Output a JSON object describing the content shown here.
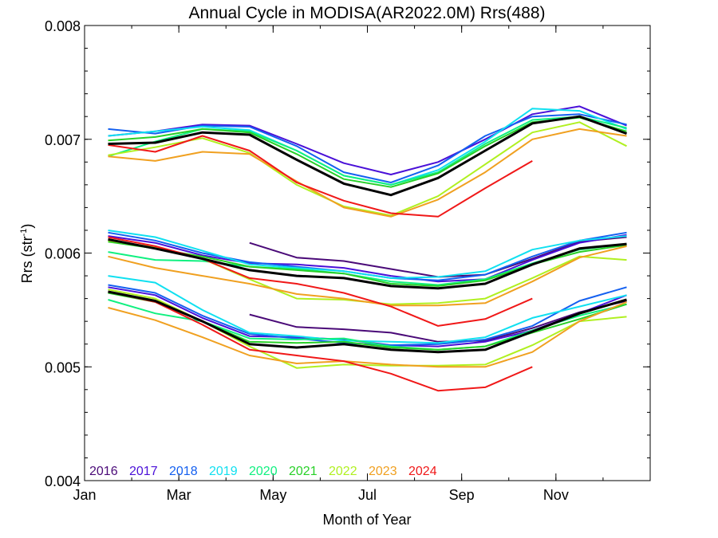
{
  "chart_data": {
    "type": "line",
    "title": "Annual Cycle in MODISA(AR2022.0M) Rrs(488)",
    "xlabel": "Month of Year",
    "ylabel": "Rrs (str",
    "ylabel_sup": "-1",
    "ylabel_close": ")",
    "xlim": [
      1,
      13
    ],
    "ylim": [
      0.004,
      0.008
    ],
    "x_ticks": [
      {
        "value": 1,
        "label": "Jan"
      },
      {
        "value": 3,
        "label": "Mar"
      },
      {
        "value": 5,
        "label": "May"
      },
      {
        "value": 7,
        "label": "Jul"
      },
      {
        "value": 9,
        "label": "Sep"
      },
      {
        "value": 11,
        "label": "Nov"
      }
    ],
    "y_ticks": [
      {
        "value": 0.004,
        "label": "0.004"
      },
      {
        "value": 0.005,
        "label": "0.005"
      },
      {
        "value": 0.006,
        "label": "0.006"
      },
      {
        "value": 0.007,
        "label": "0.007"
      },
      {
        "value": 0.008,
        "label": "0.008"
      }
    ],
    "grid": false,
    "legend_position": "bottom-left",
    "x": [
      1.5,
      2.5,
      3.5,
      4.5,
      5.5,
      6.5,
      7.5,
      8.5,
      9.5,
      10.5,
      11.5,
      12.5
    ],
    "series": [
      {
        "name": "2016",
        "color": "#4a0a78",
        "upper": [
          null,
          null,
          null,
          null,
          null,
          null,
          null,
          null,
          null,
          null,
          null,
          null
        ],
        "middle": [
          null,
          null,
          null,
          0.00609,
          0.00596,
          0.00593,
          0.00586,
          0.00579,
          0.00581,
          0.00595,
          0.0061,
          0.00614
        ],
        "lower": [
          null,
          null,
          null,
          0.00546,
          0.00535,
          0.00533,
          0.0053,
          0.00522,
          0.00523,
          0.00534,
          0.00548,
          0.00558
        ]
      },
      {
        "name": "2017",
        "color": "#4a10d8",
        "upper": [
          0.00703,
          0.00707,
          0.00713,
          0.00712,
          0.00696,
          0.00679,
          0.00669,
          0.0068,
          0.007,
          0.00722,
          0.00729,
          0.00712
        ],
        "middle": [
          0.00615,
          0.00609,
          0.00598,
          0.00591,
          0.0059,
          0.00587,
          0.0058,
          0.00575,
          0.00577,
          0.00594,
          0.00609,
          0.00616
        ],
        "lower": [
          0.0057,
          0.00563,
          0.00543,
          0.00527,
          0.00526,
          0.00524,
          0.00519,
          0.00518,
          0.00522,
          0.00532,
          0.00547,
          0.00563
        ]
      },
      {
        "name": "2018",
        "color": "#1460f0",
        "upper": [
          0.00709,
          0.00705,
          0.00712,
          0.00711,
          0.00694,
          0.00671,
          0.00662,
          0.00677,
          0.00703,
          0.0072,
          0.00722,
          0.00713
        ],
        "middle": [
          0.00618,
          0.00611,
          0.006,
          0.00592,
          0.00588,
          0.00584,
          0.00578,
          0.00576,
          0.00581,
          0.00597,
          0.00611,
          0.00618
        ],
        "lower": [
          0.00572,
          0.00565,
          0.00545,
          0.00529,
          0.00525,
          0.00521,
          0.00519,
          0.0052,
          0.00524,
          0.00536,
          0.00558,
          0.0057
        ]
      },
      {
        "name": "2019",
        "color": "#10e0f0",
        "upper": [
          0.00703,
          0.00707,
          0.00711,
          0.00708,
          0.0069,
          0.00668,
          0.0066,
          0.00673,
          0.00698,
          0.00727,
          0.00725,
          0.00709
        ],
        "middle": [
          0.0062,
          0.00614,
          0.00602,
          0.0059,
          0.00587,
          0.00584,
          0.00578,
          0.00579,
          0.00584,
          0.00603,
          0.00611,
          0.00615
        ],
        "lower": [
          0.0058,
          0.00574,
          0.0055,
          0.0053,
          0.00527,
          0.00523,
          0.00522,
          0.00521,
          0.00526,
          0.00543,
          0.00553,
          0.00563
        ]
      },
      {
        "name": "2020",
        "color": "#10f080",
        "upper": [
          0.00685,
          0.00698,
          0.00709,
          0.00707,
          0.0069,
          0.00668,
          0.0066,
          0.00671,
          0.00696,
          0.00717,
          0.0072,
          0.0071
        ],
        "middle": [
          0.00601,
          0.00594,
          0.00593,
          0.00588,
          0.00586,
          0.00582,
          0.00575,
          0.00572,
          0.00577,
          0.00591,
          0.00603,
          0.00608
        ],
        "lower": [
          0.00559,
          0.00547,
          0.0054,
          0.00525,
          0.00524,
          0.00525,
          0.00518,
          0.00515,
          0.00518,
          0.00532,
          0.00545,
          0.00555
        ]
      },
      {
        "name": "2021",
        "color": "#28d028",
        "upper": [
          0.00699,
          0.00702,
          0.00709,
          0.00706,
          0.00687,
          0.00665,
          0.00658,
          0.0067,
          0.00694,
          0.00715,
          0.00719,
          0.00707
        ],
        "middle": [
          0.0061,
          0.00604,
          0.00597,
          0.00588,
          0.00585,
          0.00582,
          0.00573,
          0.00571,
          0.00576,
          0.0059,
          0.00601,
          0.00607
        ],
        "lower": [
          0.00565,
          0.00557,
          0.0054,
          0.00522,
          0.00521,
          0.00522,
          0.00517,
          0.00515,
          0.00518,
          0.0053,
          0.00542,
          0.00555
        ]
      },
      {
        "name": "2022",
        "color": "#b0f020",
        "upper": [
          0.00686,
          0.00693,
          0.00701,
          0.00688,
          0.0066,
          0.00641,
          0.00633,
          0.0065,
          0.00678,
          0.00706,
          0.00715,
          0.00694
        ],
        "middle": [
          0.00611,
          0.00605,
          0.00595,
          0.00577,
          0.0056,
          0.00559,
          0.00555,
          0.00556,
          0.0056,
          0.00578,
          0.00597,
          0.00594
        ],
        "lower": [
          0.00568,
          0.0056,
          0.0054,
          0.00518,
          0.00499,
          0.00502,
          0.00501,
          0.00501,
          0.00502,
          0.00519,
          0.0054,
          0.00544
        ]
      },
      {
        "name": "2023",
        "color": "#f0a020",
        "upper": [
          0.00685,
          0.00681,
          0.00689,
          0.00687,
          0.00663,
          0.0064,
          0.00632,
          0.00647,
          0.00671,
          0.007,
          0.00709,
          0.00703
        ],
        "middle": [
          0.00597,
          0.00587,
          0.0058,
          0.00573,
          0.00564,
          0.0056,
          0.00554,
          0.00554,
          0.00556,
          0.00575,
          0.00596,
          0.00606
        ],
        "lower": [
          0.00552,
          0.00541,
          0.00526,
          0.0051,
          0.00503,
          0.00505,
          0.00502,
          0.005,
          0.005,
          0.00513,
          0.0054,
          0.00557
        ]
      },
      {
        "name": "2024",
        "color": "#f01818",
        "upper": [
          0.00695,
          0.00689,
          0.00703,
          0.0069,
          0.00662,
          0.00646,
          0.00635,
          0.00632,
          0.00657,
          0.00681,
          null,
          null
        ],
        "middle": [
          0.00614,
          0.00606,
          0.00595,
          0.00578,
          0.00573,
          0.00565,
          0.00553,
          0.00536,
          0.00542,
          0.0056,
          null,
          null
        ],
        "lower": [
          0.00566,
          0.00557,
          0.00537,
          0.00515,
          0.0051,
          0.00505,
          0.00494,
          0.00479,
          0.00482,
          0.005,
          null,
          null
        ]
      },
      {
        "name": "",
        "color": "#000000",
        "width": 3,
        "upper": [
          0.00696,
          0.00697,
          0.00706,
          0.00704,
          0.00682,
          0.00661,
          0.00651,
          0.00666,
          0.0069,
          0.00714,
          0.0072,
          0.00705
        ],
        "middle": [
          0.00612,
          0.00604,
          0.00595,
          0.00585,
          0.0058,
          0.00578,
          0.00571,
          0.00569,
          0.00573,
          0.0059,
          0.00604,
          0.00608
        ],
        "lower": [
          0.00566,
          0.00558,
          0.0054,
          0.0052,
          0.00517,
          0.0052,
          0.00515,
          0.00513,
          0.00515,
          0.00531,
          0.00547,
          0.00559
        ]
      }
    ]
  }
}
